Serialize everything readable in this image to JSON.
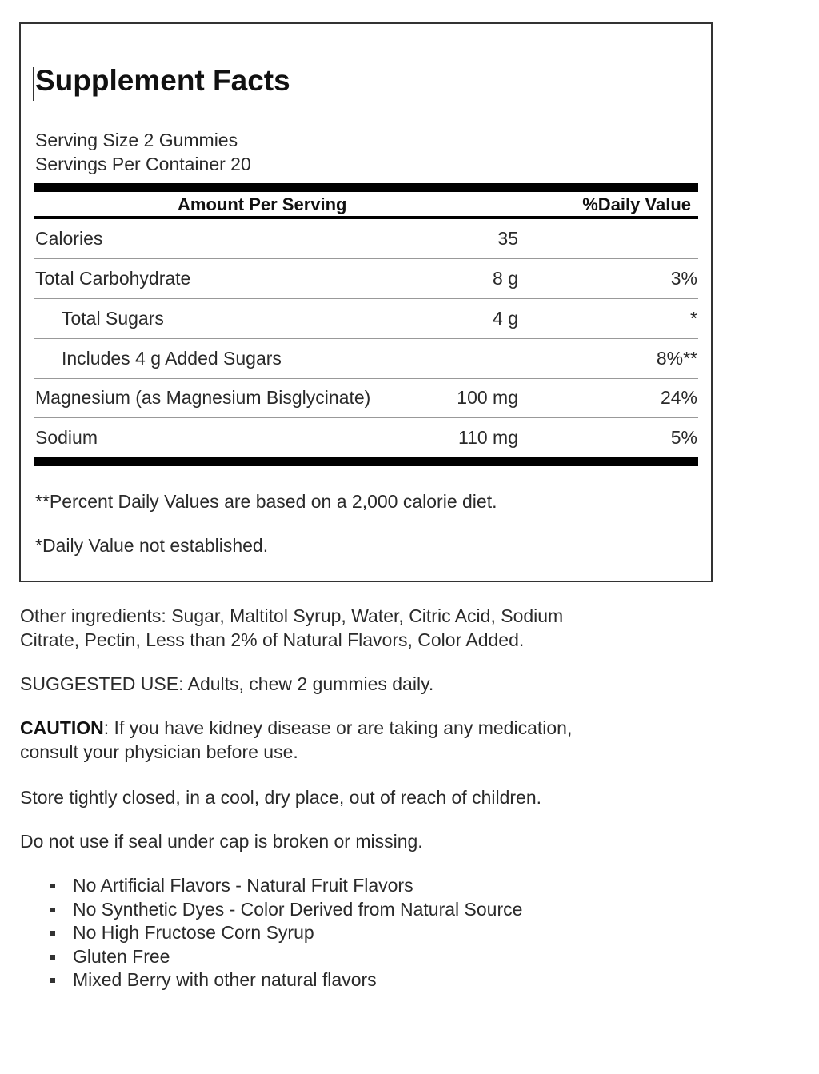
{
  "title": "Supplement Facts",
  "serving_size": "Serving Size 2 Gummies",
  "servings_per_container": "Servings Per Container 20",
  "header": {
    "amount": "Amount Per Serving",
    "dv": "%Daily Value"
  },
  "rows": [
    {
      "name": "Calories",
      "amount": "35",
      "dv": ""
    },
    {
      "name": "Total Carbohydrate",
      "amount": "8 g",
      "dv": "3%"
    },
    {
      "name": "Total Sugars",
      "amount": "4 g",
      "dv": "*"
    },
    {
      "name": "Includes 4 g Added Sugars",
      "amount": "",
      "dv": "8%**"
    },
    {
      "name": "Magnesium (as Magnesium Bisglycinate)",
      "amount": "100 mg",
      "dv": "24%"
    },
    {
      "name": "Sodium",
      "amount": "110 mg",
      "dv": "5%"
    }
  ],
  "footnotes": [
    "**Percent Daily Values are based on a 2,000 calorie diet.",
    "*Daily Value not established."
  ],
  "other_ingredients": [
    "Other ingredients: Sugar, Maltitol Syrup, Water, Citric Acid, Sodium",
    "Citrate, Pectin, Less than 2% of Natural Flavors, Color Added."
  ],
  "suggested_use": "SUGGESTED USE: Adults, chew 2 gummies daily.",
  "caution": {
    "label": "CAUTION",
    "line1": ": If you have kidney disease or are taking any medication,",
    "line2": "consult your physician before use."
  },
  "storage": "Store tightly closed, in a cool, dry place, out of reach of children.",
  "seal": "Do not use if seal under cap is broken or missing.",
  "bullets": [
    "No Artificial Flavors - Natural Fruit Flavors",
    "No Synthetic Dyes - Color Derived from Natural Source",
    "No High Fructose Corn Syrup",
    "Gluten Free",
    "Mixed Berry with other natural flavors"
  ]
}
